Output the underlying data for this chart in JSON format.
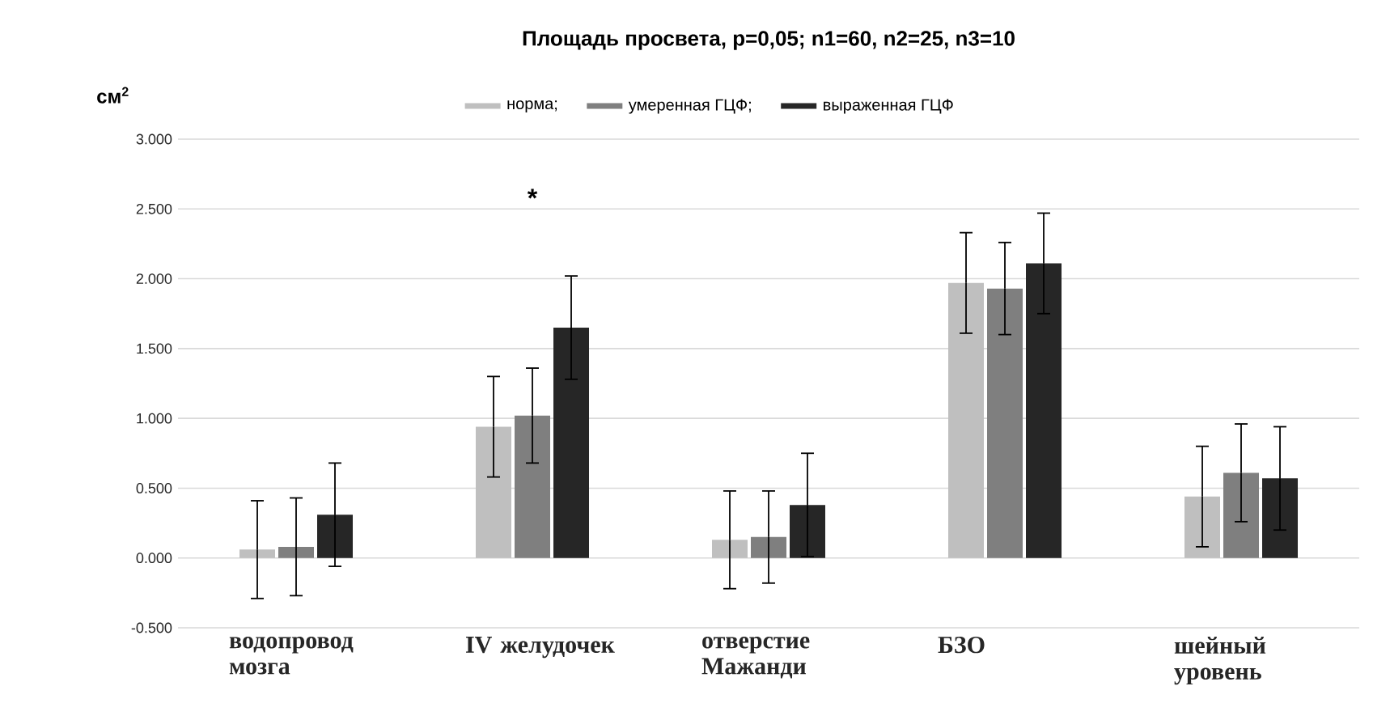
{
  "chart_data": {
    "type": "bar",
    "title": "Площадь просвета, p=0,05; n1=60, n2=25, n3=10",
    "ylabel": "см$^{2}$",
    "categories": [
      "водопровод мозга",
      "IV желудочек",
      "отверстие Мажанди",
      "БЗО",
      "шейный уровень"
    ],
    "series": [
      {
        "name": "норма;",
        "color": "#bfbfbf",
        "values": [
          0.06,
          0.94,
          0.13,
          1.97,
          0.44
        ],
        "errors": [
          0.35,
          0.36,
          0.35,
          0.36,
          0.36
        ]
      },
      {
        "name": "умеренная ГЦФ;",
        "color": "#7f7f7f",
        "values": [
          0.08,
          1.02,
          0.15,
          1.93,
          0.61
        ],
        "errors": [
          0.35,
          0.34,
          0.33,
          0.33,
          0.35
        ]
      },
      {
        "name": "выраженная ГЦФ",
        "color": "#262626",
        "values": [
          0.31,
          1.65,
          0.38,
          2.11,
          0.57
        ],
        "errors": [
          0.37,
          0.37,
          0.37,
          0.36,
          0.37
        ]
      }
    ],
    "ylim": [
      -0.5,
      3.0
    ],
    "yticks": [
      {
        "value": -0.5,
        "label": "-0.500"
      },
      {
        "value": 0,
        "label": "0.000"
      },
      {
        "value": 0.5,
        "label": "0.500"
      },
      {
        "value": 1.0,
        "label": "1.000"
      },
      {
        "value": 1.5,
        "label": "1.500"
      },
      {
        "value": 2.0,
        "label": "2.000"
      },
      {
        "value": 2.5,
        "label": "2.500"
      },
      {
        "value": 3.0,
        "label": "3.000"
      }
    ],
    "grid": "y",
    "legend": "top",
    "annotations": [
      "*"
    ]
  }
}
